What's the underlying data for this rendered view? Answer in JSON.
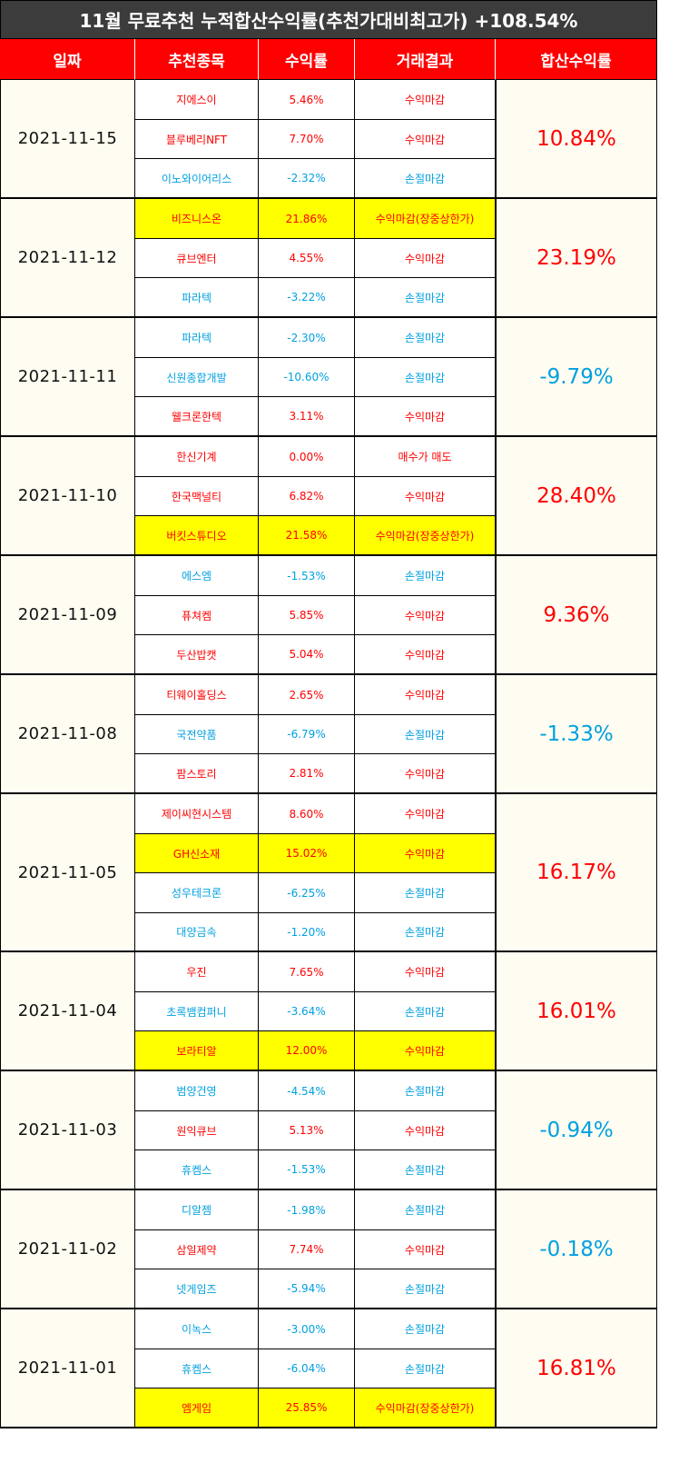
{
  "title": "11월 무료추천 누적합산수익률(추천가대비최고가) +108.54%",
  "headers": {
    "date": "일짜",
    "stock": "추천종목",
    "rate": "수익률",
    "result": "거래결과",
    "total": "합산수익률"
  },
  "colors": {
    "positive": "#ff0000",
    "negative": "#00a0e0",
    "highlight": "#ffff00",
    "header": "#ff0000"
  },
  "groups": [
    {
      "date": "2021-11-15",
      "total": "10.84%",
      "total_sign": "pos",
      "rows": [
        {
          "name": "지에스이",
          "rate": "5.46%",
          "result": "수익마감",
          "sign": "pos",
          "hl": false
        },
        {
          "name": "블루베리NFT",
          "rate": "7.70%",
          "result": "수익마감",
          "sign": "pos",
          "hl": false
        },
        {
          "name": "이노와이어리스",
          "rate": "-2.32%",
          "result": "손절마감",
          "sign": "neg",
          "hl": false
        }
      ]
    },
    {
      "date": "2021-11-12",
      "total": "23.19%",
      "total_sign": "pos",
      "rows": [
        {
          "name": "비즈니스온",
          "rate": "21.86%",
          "result": "수익마감(장중상한가)",
          "sign": "pos",
          "hl": true
        },
        {
          "name": "큐브엔터",
          "rate": "4.55%",
          "result": "수익마감",
          "sign": "pos",
          "hl": false
        },
        {
          "name": "파라텍",
          "rate": "-3.22%",
          "result": "손절마감",
          "sign": "neg",
          "hl": false
        }
      ]
    },
    {
      "date": "2021-11-11",
      "total": "-9.79%",
      "total_sign": "neg",
      "rows": [
        {
          "name": "파라텍",
          "rate": "-2.30%",
          "result": "손절마감",
          "sign": "neg",
          "hl": false
        },
        {
          "name": "신원종합개발",
          "rate": "-10.60%",
          "result": "손절마감",
          "sign": "neg",
          "hl": false
        },
        {
          "name": "웰크론한텍",
          "rate": "3.11%",
          "result": "수익마감",
          "sign": "pos",
          "hl": false
        }
      ]
    },
    {
      "date": "2021-11-10",
      "total": "28.40%",
      "total_sign": "pos",
      "rows": [
        {
          "name": "한신기계",
          "rate": "0.00%",
          "result": "매수가 매도",
          "sign": "pos",
          "hl": false
        },
        {
          "name": "한국맥널티",
          "rate": "6.82%",
          "result": "수익마감",
          "sign": "pos",
          "hl": false
        },
        {
          "name": "버킷스튜디오",
          "rate": "21.58%",
          "result": "수익마감(장중상한가)",
          "sign": "pos",
          "hl": true
        }
      ]
    },
    {
      "date": "2021-11-09",
      "total": "9.36%",
      "total_sign": "pos",
      "rows": [
        {
          "name": "에스엠",
          "rate": "-1.53%",
          "result": "손절마감",
          "sign": "neg",
          "hl": false
        },
        {
          "name": "퓨쳐켐",
          "rate": "5.85%",
          "result": "수익마감",
          "sign": "pos",
          "hl": false
        },
        {
          "name": "두산밥캣",
          "rate": "5.04%",
          "result": "수익마감",
          "sign": "pos",
          "hl": false
        }
      ]
    },
    {
      "date": "2021-11-08",
      "total": "-1.33%",
      "total_sign": "neg",
      "rows": [
        {
          "name": "티웨이홀딩스",
          "rate": "2.65%",
          "result": "수익마감",
          "sign": "pos",
          "hl": false
        },
        {
          "name": "국전약품",
          "rate": "-6.79%",
          "result": "손절마감",
          "sign": "neg",
          "hl": false
        },
        {
          "name": "팜스토리",
          "rate": "2.81%",
          "result": "수익마감",
          "sign": "pos",
          "hl": false
        }
      ]
    },
    {
      "date": "2021-11-05",
      "total": "16.17%",
      "total_sign": "pos",
      "rows": [
        {
          "name": "제이씨현시스템",
          "rate": "8.60%",
          "result": "수익마감",
          "sign": "pos",
          "hl": false
        },
        {
          "name": "GH신소재",
          "rate": "15.02%",
          "result": "수익마감",
          "sign": "pos",
          "hl": true
        },
        {
          "name": "성우테크론",
          "rate": "-6.25%",
          "result": "손절마감",
          "sign": "neg",
          "hl": false
        },
        {
          "name": "대양금속",
          "rate": "-1.20%",
          "result": "손절마감",
          "sign": "neg",
          "hl": false
        }
      ]
    },
    {
      "date": "2021-11-04",
      "total": "16.01%",
      "total_sign": "pos",
      "rows": [
        {
          "name": "우진",
          "rate": "7.65%",
          "result": "수익마감",
          "sign": "pos",
          "hl": false
        },
        {
          "name": "초록뱀컴퍼니",
          "rate": "-3.64%",
          "result": "손절마감",
          "sign": "neg",
          "hl": false
        },
        {
          "name": "보라티알",
          "rate": "12.00%",
          "result": "수익마감",
          "sign": "pos",
          "hl": true
        }
      ]
    },
    {
      "date": "2021-11-03",
      "total": "-0.94%",
      "total_sign": "neg",
      "rows": [
        {
          "name": "범양건영",
          "rate": "-4.54%",
          "result": "손절마감",
          "sign": "neg",
          "hl": false
        },
        {
          "name": "원익큐브",
          "rate": "5.13%",
          "result": "수익마감",
          "sign": "pos",
          "hl": false
        },
        {
          "name": "휴켐스",
          "rate": "-1.53%",
          "result": "손절마감",
          "sign": "neg",
          "hl": false
        }
      ]
    },
    {
      "date": "2021-11-02",
      "total": "-0.18%",
      "total_sign": "neg",
      "rows": [
        {
          "name": "디알젬",
          "rate": "-1.98%",
          "result": "손절마감",
          "sign": "neg",
          "hl": false
        },
        {
          "name": "삼일제약",
          "rate": "7.74%",
          "result": "수익마감",
          "sign": "pos",
          "hl": false
        },
        {
          "name": "넷게임즈",
          "rate": "-5.94%",
          "result": "손절마감",
          "sign": "neg",
          "hl": false
        }
      ]
    },
    {
      "date": "2021-11-01",
      "total": "16.81%",
      "total_sign": "pos",
      "rows": [
        {
          "name": "이녹스",
          "rate": "-3.00%",
          "result": "손절마감",
          "sign": "neg",
          "hl": false
        },
        {
          "name": "휴켐스",
          "rate": "-6.04%",
          "result": "손절마감",
          "sign": "neg",
          "hl": false
        },
        {
          "name": "엠게임",
          "rate": "25.85%",
          "result": "수익마감(장중상한가)",
          "sign": "pos",
          "hl": true
        }
      ]
    }
  ]
}
